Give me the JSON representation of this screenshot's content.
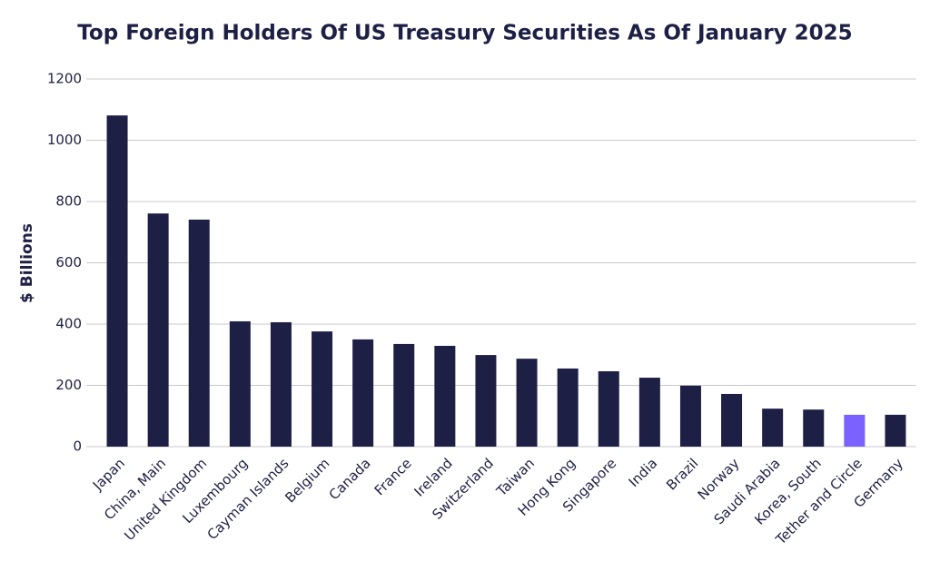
{
  "chart_data": {
    "type": "bar",
    "title": "Top Foreign Holders Of US Treasury Securities As Of January 2025",
    "y_label": "$ Billions",
    "categories": [
      "Japan",
      "China, Main",
      "United Kingdom",
      "Luxembourg",
      "Cayman Islands",
      "Belgium",
      "Canada",
      "France",
      "Ireland",
      "Switzerland",
      "Taiwan",
      "Hong Kong",
      "Singapore",
      "India",
      "Brazil",
      "Norway",
      "Saudi Arabia",
      "Korea, South",
      "Tether and Circle",
      "Germany"
    ],
    "values": [
      1081,
      761,
      741,
      409,
      406,
      376,
      350,
      335,
      329,
      299,
      287,
      255,
      246,
      225,
      199,
      172,
      124,
      121,
      104,
      104
    ],
    "colors": [
      "#1e1f45",
      "#1e1f45",
      "#1e1f45",
      "#1e1f45",
      "#1e1f45",
      "#1e1f45",
      "#1e1f45",
      "#1e1f45",
      "#1e1f45",
      "#1e1f45",
      "#1e1f45",
      "#1e1f45",
      "#1e1f45",
      "#1e1f45",
      "#1e1f45",
      "#1e1f45",
      "#1e1f45",
      "#1e1f45",
      "#7b61ff",
      "#1e1f45"
    ],
    "ylim": [
      0,
      1200
    ],
    "yticks": [
      0,
      200,
      400,
      600,
      800,
      1000,
      1200
    ],
    "grid": true
  }
}
